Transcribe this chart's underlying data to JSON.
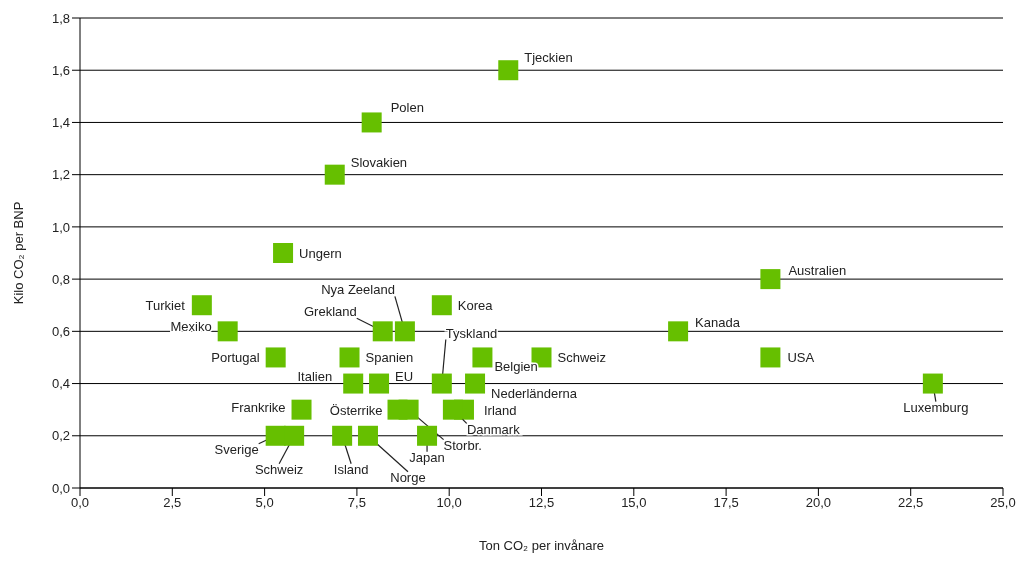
{
  "chart_data": {
    "type": "scatter",
    "xlabel": "Ton CO₂ per invånare",
    "ylabel": "Kilo CO₂ per BNP",
    "marker": "square",
    "grid": "y",
    "legend": false,
    "xlim": [
      0,
      25
    ],
    "xticks": [
      {
        "value": 0,
        "label": "0,0"
      },
      {
        "value": 2.5,
        "label": "2,5"
      },
      {
        "value": 5,
        "label": "5,0"
      },
      {
        "value": 7.5,
        "label": "7,5"
      },
      {
        "value": 10,
        "label": "10,0"
      },
      {
        "value": 12.5,
        "label": "12,5"
      },
      {
        "value": 15,
        "label": "15,0"
      },
      {
        "value": 17.5,
        "label": "17,5"
      },
      {
        "value": 20,
        "label": "20,0"
      },
      {
        "value": 22.5,
        "label": "22,5"
      },
      {
        "value": 25,
        "label": "25,0"
      }
    ],
    "ylim": [
      0,
      1.8
    ],
    "yticks": [
      {
        "value": 0,
        "label": "0,0"
      },
      {
        "value": 0.2,
        "label": "0,2"
      },
      {
        "value": 0.4,
        "label": "0,4"
      },
      {
        "value": 0.6,
        "label": "0,6"
      },
      {
        "value": 0.8,
        "label": "0,8"
      },
      {
        "value": 1,
        "label": "1,0"
      },
      {
        "value": 1.2,
        "label": "1,2"
      },
      {
        "value": 1.4,
        "label": "1,4"
      },
      {
        "value": 1.6,
        "label": "1,6"
      },
      {
        "value": 1.8,
        "label": "1,8"
      }
    ],
    "series": [
      {
        "name": "Tjeckien",
        "color": "#66bf00",
        "x": [
          11.6
        ],
        "values": [
          1.6
        ]
      },
      {
        "name": "Polen",
        "color": "#66bf00",
        "x": [
          7.9
        ],
        "values": [
          1.4
        ]
      },
      {
        "name": "Slovakien",
        "color": "#66bf00",
        "x": [
          6.9
        ],
        "values": [
          1.2
        ]
      },
      {
        "name": "Ungern",
        "color": "#66bf00",
        "x": [
          5.5
        ],
        "values": [
          0.9
        ]
      },
      {
        "name": "Australien",
        "color": "#66bf00",
        "x": [
          18.7
        ],
        "values": [
          0.8
        ]
      },
      {
        "name": "Turkiet",
        "color": "#66bf00",
        "x": [
          3.3
        ],
        "values": [
          0.7
        ]
      },
      {
        "name": "Korea",
        "color": "#66bf00",
        "x": [
          9.8
        ],
        "values": [
          0.7
        ]
      },
      {
        "name": "Mexiko",
        "color": "#66bf00",
        "x": [
          4.0
        ],
        "values": [
          0.6
        ]
      },
      {
        "name": "Kanada",
        "color": "#66bf00",
        "x": [
          16.2
        ],
        "values": [
          0.6
        ]
      },
      {
        "name": "Grekland",
        "color": "#66bf00",
        "x": [
          8.2
        ],
        "values": [
          0.6
        ]
      },
      {
        "name": "Nya Zeeland",
        "color": "#66bf00",
        "x": [
          8.8
        ],
        "values": [
          0.6
        ]
      },
      {
        "name": "Portugal",
        "color": "#66bf00",
        "x": [
          5.3
        ],
        "values": [
          0.5
        ]
      },
      {
        "name": "Spanien",
        "color": "#66bf00",
        "x": [
          7.3
        ],
        "values": [
          0.5
        ]
      },
      {
        "name": "Schweiz",
        "color": "#66bf00",
        "x": [
          12.5
        ],
        "values": [
          0.5
        ]
      },
      {
        "name": "USA",
        "color": "#66bf00",
        "x": [
          18.7
        ],
        "values": [
          0.5
        ]
      },
      {
        "name": "Tyskland",
        "color": "#66bf00",
        "x": [
          9.8
        ],
        "values": [
          0.4
        ]
      },
      {
        "name": "Belgien",
        "color": "#66bf00",
        "x": [
          10.9
        ],
        "values": [
          0.5
        ]
      },
      {
        "name": "Nederländerna",
        "color": "#66bf00",
        "x": [
          10.7
        ],
        "values": [
          0.4
        ]
      },
      {
        "name": "Irland",
        "color": "#66bf00",
        "x": [
          10.4
        ],
        "values": [
          0.3
        ]
      },
      {
        "name": "Danmark",
        "color": "#66bf00",
        "x": [
          10.1
        ],
        "values": [
          0.3
        ]
      },
      {
        "name": "Italien",
        "color": "#66bf00",
        "x": [
          7.4
        ],
        "values": [
          0.4
        ]
      },
      {
        "name": "EU",
        "color": "#66bf00",
        "x": [
          8.1
        ],
        "values": [
          0.4
        ]
      },
      {
        "name": "Österrike",
        "color": "#66bf00",
        "x": [
          8.6
        ],
        "values": [
          0.3
        ]
      },
      {
        "name": "Storbr.",
        "color": "#66bf00",
        "x": [
          8.9
        ],
        "values": [
          0.3
        ]
      },
      {
        "name": "Frankrike",
        "color": "#66bf00",
        "x": [
          6.0
        ],
        "values": [
          0.3
        ]
      },
      {
        "name": "Sverige",
        "color": "#66bf00",
        "x": [
          5.3
        ],
        "values": [
          0.2
        ]
      },
      {
        "name": "Schweiz",
        "color": "#66bf00",
        "x": [
          5.8
        ],
        "values": [
          0.2
        ]
      },
      {
        "name": "Island",
        "color": "#66bf00",
        "x": [
          7.1
        ],
        "values": [
          0.2
        ]
      },
      {
        "name": "Norge",
        "color": "#66bf00",
        "x": [
          7.8
        ],
        "values": [
          0.2
        ]
      },
      {
        "name": "Japan",
        "color": "#66bf00",
        "x": [
          9.4
        ],
        "values": [
          0.2
        ]
      },
      {
        "name": "Luxemburg",
        "color": "#66bf00",
        "x": [
          23.1
        ],
        "values": [
          0.4
        ]
      }
    ]
  }
}
